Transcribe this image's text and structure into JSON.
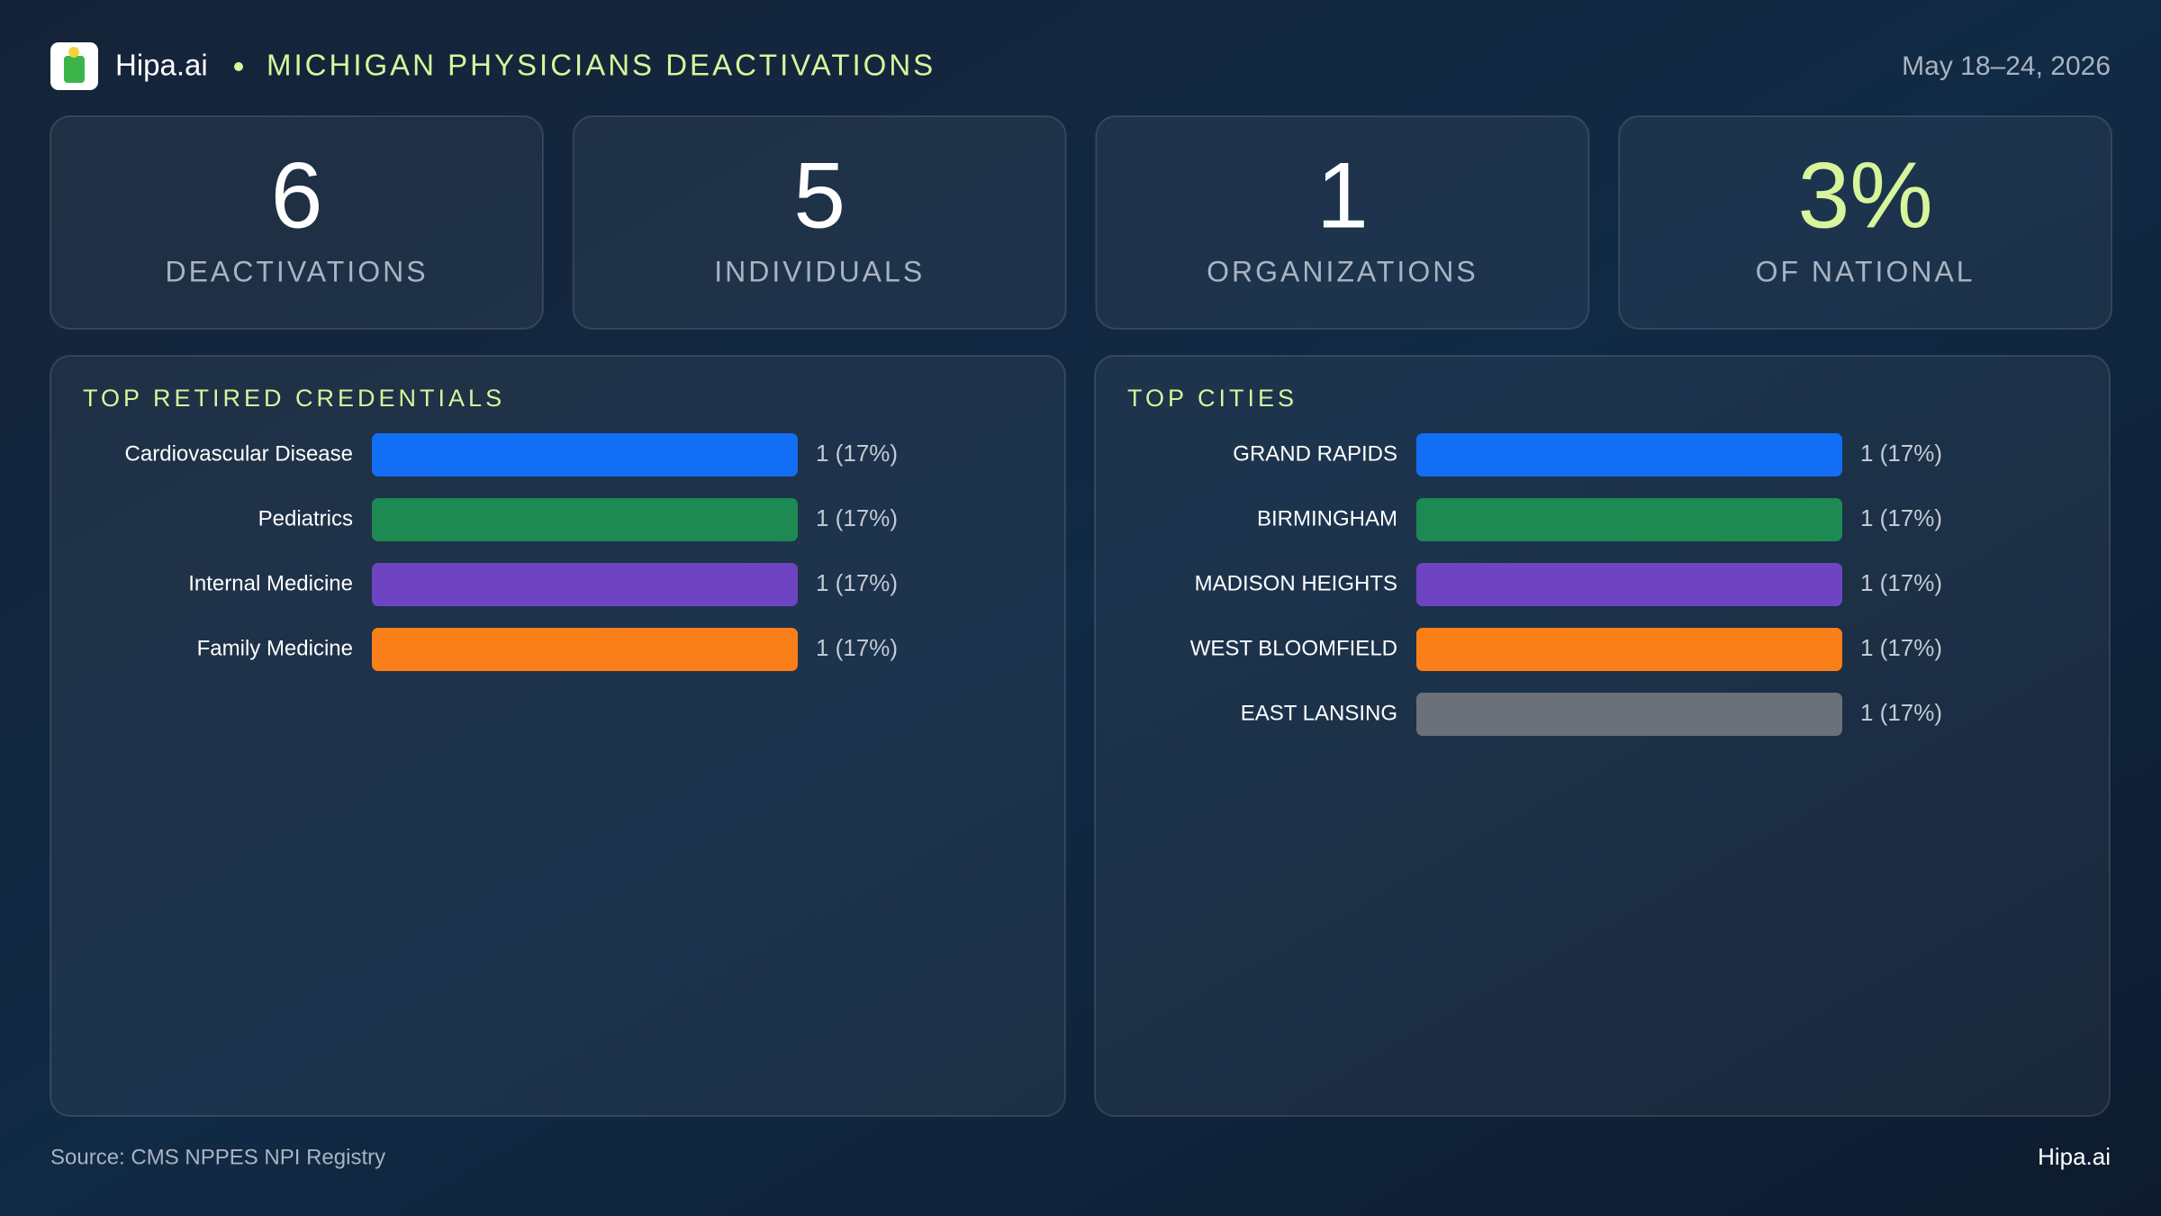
{
  "header": {
    "brand": "Hipa.ai",
    "title": "MICHIGAN PHYSICIANS DEACTIVATIONS",
    "date": "May 18–24, 2026"
  },
  "kpis": [
    {
      "value": "6",
      "label": "DEACTIVATIONS"
    },
    {
      "value": "5",
      "label": "INDIVIDUALS"
    },
    {
      "value": "1",
      "label": "ORGANIZATIONS"
    },
    {
      "value": "3%",
      "label": "OF NATIONAL"
    }
  ],
  "chart_data": [
    {
      "type": "bar",
      "orientation": "horizontal",
      "title": "TOP RETIRED CREDENTIALS",
      "categories": [
        "Cardiovascular Disease",
        "Pediatrics",
        "Internal Medicine",
        "Family Medicine"
      ],
      "values": [
        1,
        1,
        1,
        1
      ],
      "value_labels": [
        "1 (17%)",
        "1 (17%)",
        "1 (17%)",
        "1 (17%)"
      ],
      "colors": [
        "#126ef5",
        "#1c8a52",
        "#6e44c2",
        "#fb7f19"
      ]
    },
    {
      "type": "bar",
      "orientation": "horizontal",
      "title": "TOP CITIES",
      "categories": [
        "GRAND RAPIDS",
        "BIRMINGHAM",
        "MADISON HEIGHTS",
        "WEST BLOOMFIELD",
        "EAST LANSING"
      ],
      "values": [
        1,
        1,
        1,
        1,
        1
      ],
      "value_labels": [
        "1 (17%)",
        "1 (17%)",
        "1 (17%)",
        "1 (17%)",
        "1 (17%)"
      ],
      "colors": [
        "#126ef5",
        "#1c8a52",
        "#6e44c2",
        "#fb7f19",
        "#6b7079"
      ]
    }
  ],
  "footer": {
    "source": "Source: CMS NPPES NPI Registry",
    "brand": "Hipa.ai"
  }
}
